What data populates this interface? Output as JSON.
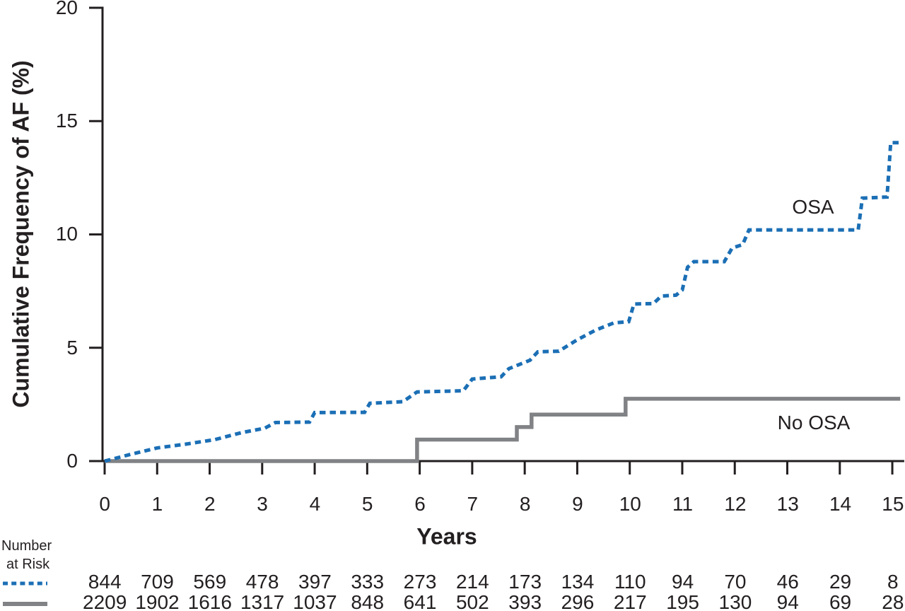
{
  "chart": {
    "y_axis_title": "Cumulative Frequency of AF (%)",
    "x_axis_title": "Years",
    "series_labels": {
      "osa": "OSA",
      "no_osa": "No OSA"
    }
  },
  "chart_data": {
    "type": "line",
    "subtype": "kaplan-meier-step-curves",
    "title": "",
    "xlabel": "Years",
    "ylabel": "Cumulative Frequency of AF (%)",
    "xlim": [
      0,
      15.2
    ],
    "ylim": [
      0,
      20
    ],
    "x_ticks": [
      0,
      1,
      2,
      3,
      4,
      5,
      6,
      7,
      8,
      9,
      10,
      11,
      12,
      13,
      14,
      15
    ],
    "y_ticks": [
      0,
      5,
      10,
      15,
      20
    ],
    "grid": false,
    "legend_position": "inline-annotations",
    "series": [
      {
        "name": "OSA",
        "style": "dotted",
        "color": "#1b6fb5",
        "points": [
          [
            0,
            0
          ],
          [
            0.5,
            0.3
          ],
          [
            1,
            0.58
          ],
          [
            1.55,
            0.75
          ],
          [
            2.1,
            0.95
          ],
          [
            2.6,
            1.25
          ],
          [
            3.05,
            1.45
          ],
          [
            3.25,
            1.7
          ],
          [
            3.9,
            1.72
          ],
          [
            4.0,
            2.14
          ],
          [
            4.95,
            2.15
          ],
          [
            5.05,
            2.55
          ],
          [
            5.68,
            2.62
          ],
          [
            5.95,
            3.05
          ],
          [
            6.83,
            3.1
          ],
          [
            7.0,
            3.62
          ],
          [
            7.55,
            3.72
          ],
          [
            7.7,
            4.08
          ],
          [
            8.1,
            4.45
          ],
          [
            8.25,
            4.82
          ],
          [
            8.65,
            4.85
          ],
          [
            9.0,
            5.35
          ],
          [
            9.35,
            5.78
          ],
          [
            9.7,
            6.1
          ],
          [
            9.98,
            6.15
          ],
          [
            10.08,
            6.93
          ],
          [
            10.45,
            6.95
          ],
          [
            10.6,
            7.28
          ],
          [
            10.88,
            7.32
          ],
          [
            11.0,
            7.55
          ],
          [
            11.1,
            8.55
          ],
          [
            11.22,
            8.8
          ],
          [
            11.8,
            8.8
          ],
          [
            11.95,
            9.4
          ],
          [
            12.15,
            9.55
          ],
          [
            12.27,
            10.2
          ],
          [
            14.35,
            10.2
          ],
          [
            14.43,
            11.6
          ],
          [
            14.9,
            11.65
          ],
          [
            14.97,
            14.05
          ],
          [
            15.13,
            14.05
          ]
        ]
      },
      {
        "name": "No OSA",
        "style": "solid",
        "color": "#808285",
        "points": [
          [
            0,
            0
          ],
          [
            5.95,
            0
          ],
          [
            5.95,
            0.95
          ],
          [
            7.85,
            0.95
          ],
          [
            7.85,
            1.5
          ],
          [
            8.13,
            1.5
          ],
          [
            8.13,
            2.05
          ],
          [
            9.92,
            2.05
          ],
          [
            9.92,
            2.75
          ],
          [
            15.15,
            2.75
          ]
        ]
      }
    ]
  },
  "at_risk": {
    "header_line1": "Number",
    "header_line2": "at Risk",
    "rows": [
      {
        "series": "OSA",
        "values": [
          844,
          709,
          569,
          478,
          397,
          333,
          273,
          214,
          173,
          134,
          110,
          94,
          70,
          46,
          29,
          8
        ]
      },
      {
        "series": "No OSA",
        "values": [
          2209,
          1902,
          1616,
          1317,
          1037,
          848,
          641,
          502,
          393,
          296,
          217,
          195,
          130,
          94,
          69,
          28
        ]
      }
    ]
  },
  "colors": {
    "osa_line": "#1b6fb5",
    "no_osa_line": "#808285",
    "axis": "#231f20",
    "text": "#231f20",
    "background": "#ffffff"
  }
}
